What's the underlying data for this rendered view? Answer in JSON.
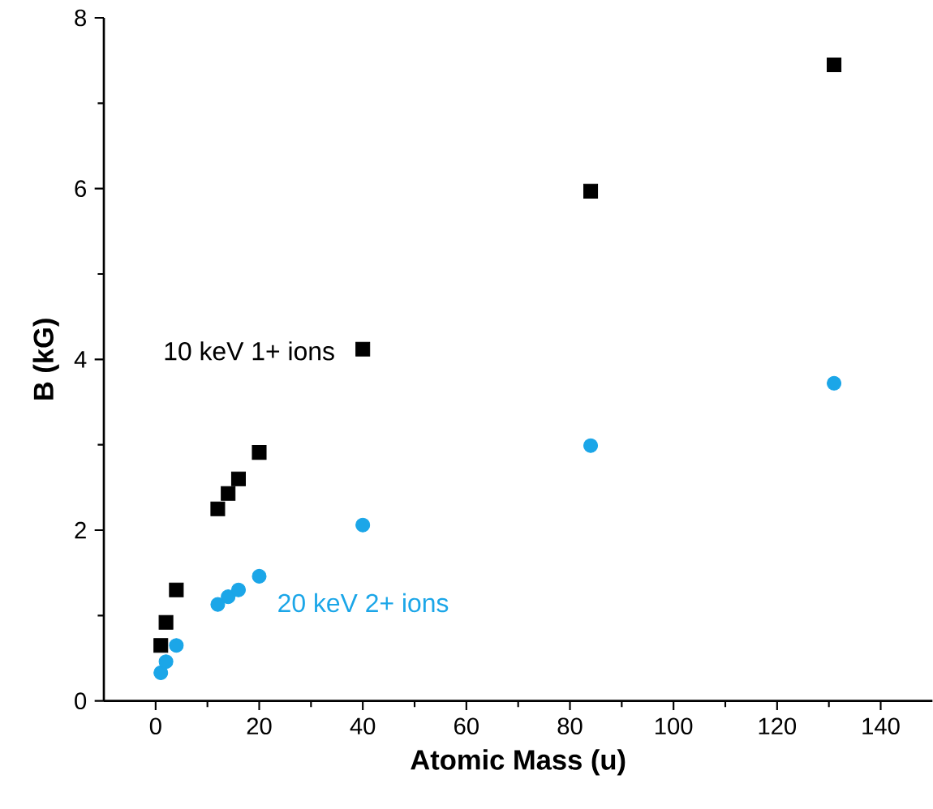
{
  "chart_data": {
    "type": "scatter",
    "xlabel": "Atomic Mass (u)",
    "ylabel": "B (kG)",
    "xlim": [
      -10,
      150
    ],
    "xticks": [
      0,
      20,
      40,
      60,
      80,
      100,
      120,
      140
    ],
    "ylim": [
      0,
      8
    ],
    "yticks": [
      0,
      2,
      4,
      6,
      8
    ],
    "grid": false,
    "legend": false,
    "series": [
      {
        "name": "10 keV 1+ ions",
        "color": "#000000",
        "marker": "square",
        "x": [
          1,
          2,
          4,
          12,
          14,
          16,
          20,
          40,
          84,
          131
        ],
        "values": [
          0.65,
          0.92,
          1.3,
          2.25,
          2.43,
          2.6,
          2.91,
          4.12,
          5.97,
          7.45
        ]
      },
      {
        "name": "20 keV 2+ ions",
        "color": "#1ba6e8",
        "marker": "circle",
        "x": [
          1,
          2,
          4,
          12,
          14,
          16,
          20,
          40,
          84,
          131
        ],
        "values": [
          0.33,
          0.46,
          0.65,
          1.13,
          1.22,
          1.3,
          1.46,
          2.06,
          2.99,
          3.72
        ]
      }
    ]
  }
}
